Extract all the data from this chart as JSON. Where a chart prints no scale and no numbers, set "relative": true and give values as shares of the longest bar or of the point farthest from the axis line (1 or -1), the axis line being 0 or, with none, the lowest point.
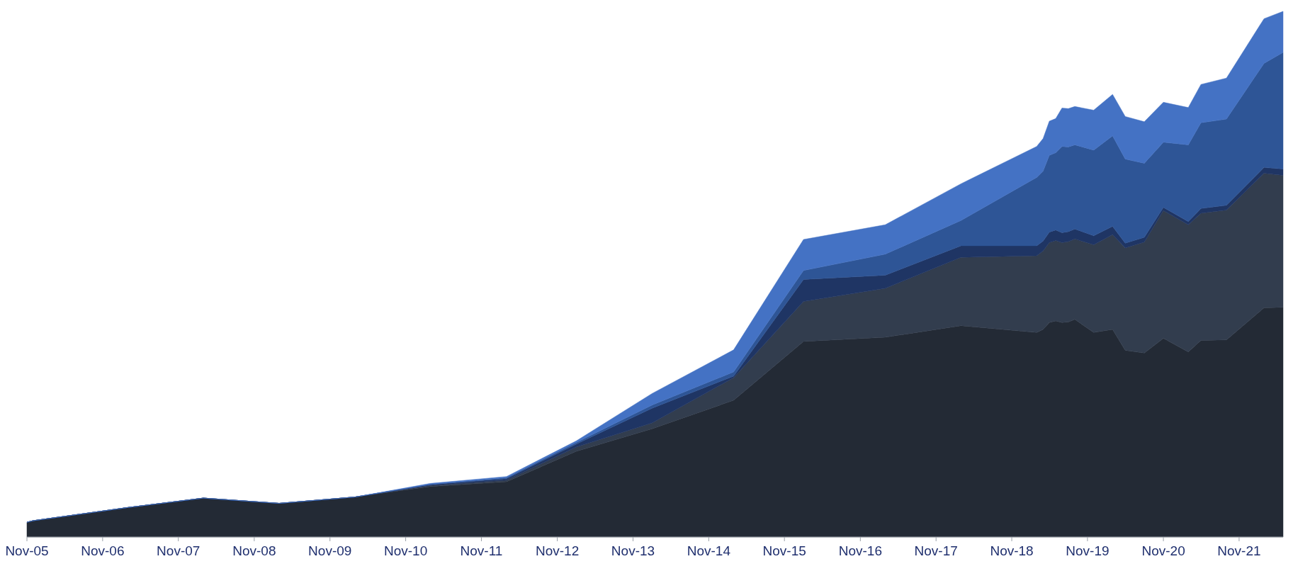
{
  "chart_data": {
    "type": "area",
    "stacked": true,
    "relative": true,
    "x": [
      "2005-11",
      "2005-12",
      "2007-03",
      "2008-03",
      "2009-03",
      "2010-03",
      "2011-03",
      "2012-03",
      "2013-02",
      "2014-02",
      "2015-03",
      "2016-02",
      "2017-03",
      "2018-03",
      "2019-03",
      "2019-04",
      "2019-05",
      "2019-06",
      "2019-07",
      "2019-08",
      "2019-09",
      "2019-12",
      "2020-03",
      "2020-05",
      "2020-08",
      "2020-11",
      "2021-03",
      "2021-05",
      "2021-09",
      "2022-03",
      "2022-06"
    ],
    "xlim": [
      "2005-11",
      "2022-06"
    ],
    "xticks": [
      {
        "value": "2005-11",
        "label": "Nov-05"
      },
      {
        "value": "2006-11",
        "label": "Nov-06"
      },
      {
        "value": "2007-11",
        "label": "Nov-07"
      },
      {
        "value": "2008-11",
        "label": "Nov-08"
      },
      {
        "value": "2009-11",
        "label": "Nov-09"
      },
      {
        "value": "2010-11",
        "label": "Nov-10"
      },
      {
        "value": "2011-11",
        "label": "Nov-11"
      },
      {
        "value": "2012-11",
        "label": "Nov-12"
      },
      {
        "value": "2013-11",
        "label": "Nov-13"
      },
      {
        "value": "2014-11",
        "label": "Nov-14"
      },
      {
        "value": "2015-11",
        "label": "Nov-15"
      },
      {
        "value": "2016-11",
        "label": "Nov-16"
      },
      {
        "value": "2017-11",
        "label": "Nov-17"
      },
      {
        "value": "2018-11",
        "label": "Nov-18"
      },
      {
        "value": "2019-11",
        "label": "Nov-19"
      },
      {
        "value": "2020-11",
        "label": "Nov-20"
      },
      {
        "value": "2021-11",
        "label": "Nov-21"
      }
    ],
    "series": [
      {
        "color": "#232a35",
        "values": [
          0.028,
          0.031,
          0.056,
          0.074,
          0.064,
          0.076,
          0.096,
          0.105,
          0.163,
          0.206,
          0.26,
          0.372,
          0.38,
          0.402,
          0.389,
          0.395,
          0.408,
          0.411,
          0.408,
          0.409,
          0.414,
          0.389,
          0.395,
          0.355,
          0.35,
          0.378,
          0.352,
          0.374,
          0.375,
          0.436,
          0.437
        ]
      },
      {
        "color": "#323d4e",
        "values": [
          0,
          0,
          0,
          0,
          0,
          0,
          0.002,
          0.003,
          0.008,
          0.011,
          0.043,
          0.076,
          0.093,
          0.13,
          0.146,
          0.149,
          0.152,
          0.153,
          0.152,
          0.153,
          0.153,
          0.167,
          0.18,
          0.195,
          0.211,
          0.243,
          0.242,
          0.242,
          0.247,
          0.256,
          0.251
        ]
      },
      {
        "color": "#1f3564",
        "values": [
          0,
          0,
          0,
          0,
          0,
          0,
          0.002,
          0.003,
          0.006,
          0.028,
          0.003,
          0.042,
          0.025,
          0.022,
          0.019,
          0.019,
          0.02,
          0.02,
          0.019,
          0.019,
          0.019,
          0.017,
          0.016,
          0.009,
          0.009,
          0.006,
          0.006,
          0.009,
          0.009,
          0.011,
          0.012
        ]
      },
      {
        "color": "#2e5596",
        "values": [
          0,
          0,
          0,
          0,
          0,
          0,
          0,
          0.002,
          0.003,
          0.006,
          0.008,
          0.017,
          0.04,
          0.048,
          0.13,
          0.133,
          0.146,
          0.147,
          0.164,
          0.161,
          0.16,
          0.163,
          0.172,
          0.16,
          0.141,
          0.124,
          0.146,
          0.163,
          0.164,
          0.198,
          0.222
        ]
      },
      {
        "color": "#4472c4",
        "values": [
          0,
          0,
          0,
          0,
          0,
          0,
          0.002,
          0.002,
          0.003,
          0.022,
          0.042,
          0.059,
          0.056,
          0.07,
          0.059,
          0.062,
          0.065,
          0.065,
          0.073,
          0.073,
          0.073,
          0.076,
          0.079,
          0.081,
          0.079,
          0.076,
          0.071,
          0.073,
          0.078,
          0.085,
          0.078
        ]
      }
    ]
  }
}
